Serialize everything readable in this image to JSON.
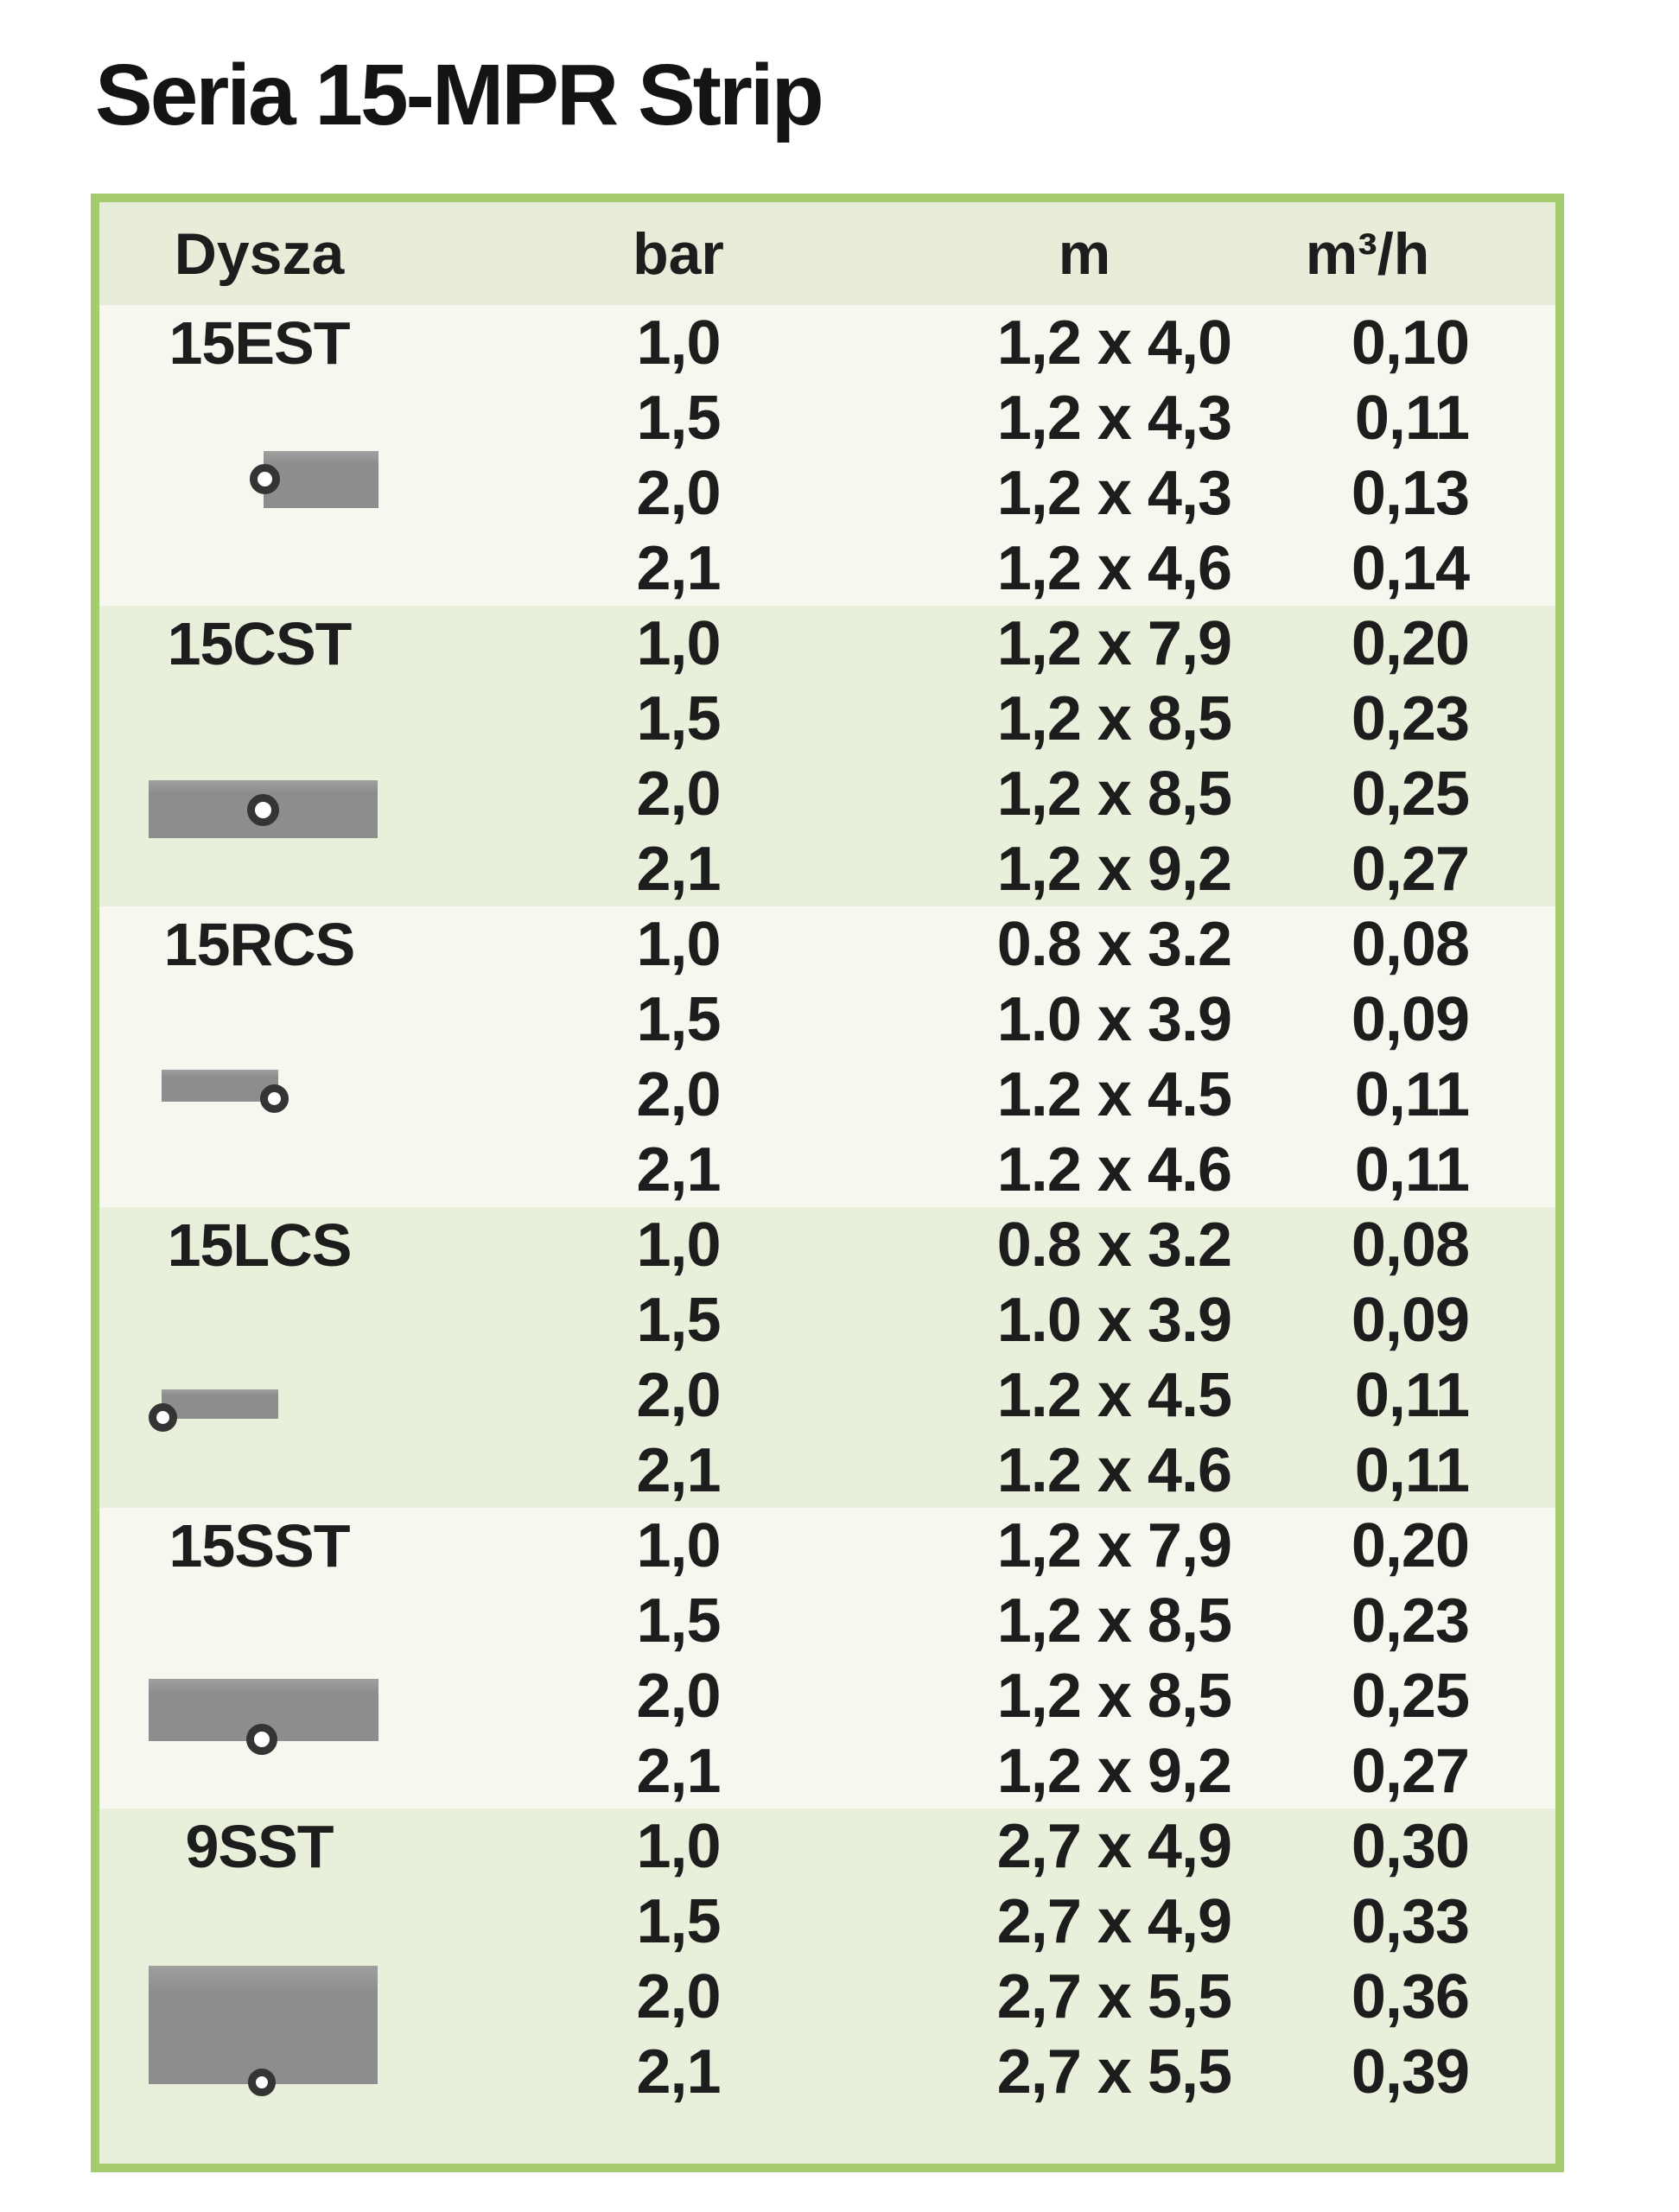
{
  "title": "Seria 15-MPR Strip",
  "table": {
    "columns": [
      "Dysza",
      "bar",
      "m",
      "m³/h"
    ],
    "groups": [
      {
        "nozzle": "15EST",
        "icon": "end-strip-nozzle-icon",
        "rows": [
          [
            "1,0",
            "1,2 x 4,0",
            "0,10"
          ],
          [
            "1,5",
            "1,2 x 4,3",
            "0,11"
          ],
          [
            "2,0",
            "1,2 x 4,3",
            "0,13"
          ],
          [
            "2,1",
            "1,2 x 4,6",
            "0,14"
          ]
        ]
      },
      {
        "nozzle": "15CST",
        "icon": "center-strip-nozzle-icon",
        "rows": [
          [
            "1,0",
            "1,2 x 7,9",
            "0,20"
          ],
          [
            "1,5",
            "1,2 x 8,5",
            "0,23"
          ],
          [
            "2,0",
            "1,2 x 8,5",
            "0,25"
          ],
          [
            "2,1",
            "1,2 x 9,2",
            "0,27"
          ]
        ]
      },
      {
        "nozzle": "15RCS",
        "icon": "right-corner-strip-nozzle-icon",
        "rows": [
          [
            "1,0",
            "0.8 x 3.2",
            "0,08"
          ],
          [
            "1,5",
            "1.0 x 3.9",
            "0,09"
          ],
          [
            "2,0",
            "1.2 x 4.5",
            "0,11"
          ],
          [
            "2,1",
            "1.2 x 4.6",
            "0,11"
          ]
        ]
      },
      {
        "nozzle": "15LCS",
        "icon": "left-corner-strip-nozzle-icon",
        "rows": [
          [
            "1,0",
            "0.8 x 3.2",
            "0,08"
          ],
          [
            "1,5",
            "1.0 x 3.9",
            "0,09"
          ],
          [
            "2,0",
            "1.2 x 4.5",
            "0,11"
          ],
          [
            "2,1",
            "1.2 x 4.6",
            "0,11"
          ]
        ]
      },
      {
        "nozzle": "15SST",
        "icon": "side-strip-nozzle-icon",
        "rows": [
          [
            "1,0",
            "1,2 x 7,9",
            "0,20"
          ],
          [
            "1,5",
            "1,2 x 8,5",
            "0,23"
          ],
          [
            "2,0",
            "1,2 x 8,5",
            "0,25"
          ],
          [
            "2,1",
            "1,2 x 9,2",
            "0,27"
          ]
        ]
      },
      {
        "nozzle": "9SST",
        "icon": "side-strip-large-nozzle-icon",
        "rows": [
          [
            "1,0",
            "2,7 x 4,9",
            "0,30"
          ],
          [
            "1,5",
            "2,7 x 4,9",
            "0,33"
          ],
          [
            "2,0",
            "2,7 x 5,5",
            "0,36"
          ],
          [
            "2,1",
            "2,7 x 5,5",
            "0,39"
          ]
        ]
      }
    ]
  },
  "colors": {
    "table_border": "#a5cb6f",
    "header_bg": "#e8edda",
    "band_green": "#e8efdb",
    "band_light": "#f6f8ef",
    "icon_gray": "#8d8d8d",
    "dot_ring": "#343434",
    "dot_fill": "#ffffff",
    "text": "#1d1d1d",
    "title_color": "#141414",
    "page_bg": "#ffffff"
  }
}
